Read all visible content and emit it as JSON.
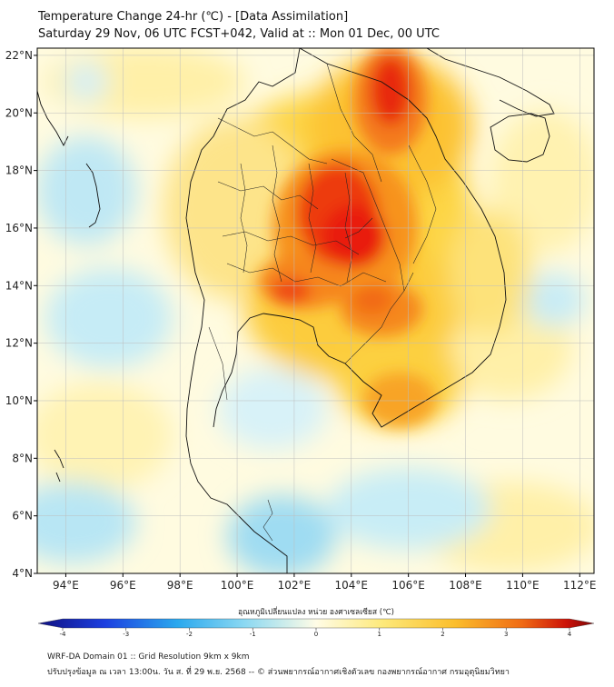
{
  "title": {
    "line1": "Temperature Change 24-hr (℃) - [Data Assimilation]",
    "line2": "Saturday 29 Nov, 06 UTC FCST+042, Valid at :: Mon 01 Dec, 00 UTC"
  },
  "map": {
    "lon_range": [
      93,
      112.5
    ],
    "lat_range": [
      4,
      22.25
    ],
    "lon_ticks": [
      "94°E",
      "96°E",
      "98°E",
      "100°E",
      "102°E",
      "104°E",
      "106°E",
      "108°E",
      "110°E",
      "112°E"
    ],
    "lon_tick_values": [
      94,
      96,
      98,
      100,
      102,
      104,
      106,
      108,
      110,
      112
    ],
    "lat_ticks": [
      "4°N",
      "6°N",
      "8°N",
      "10°N",
      "12°N",
      "14°N",
      "16°N",
      "18°N",
      "20°N",
      "22°N"
    ],
    "lat_tick_values": [
      4,
      6,
      8,
      10,
      12,
      14,
      16,
      18,
      20,
      22
    ]
  },
  "colorbar": {
    "title": "อุณหภูมิเปลี่ยนแปลง หน่วย องศาเซลเซียส (℃)",
    "min": -4,
    "max": 4,
    "tick_labels": [
      "-4",
      "-3",
      "-2",
      "-1",
      "0",
      "1",
      "2",
      "3",
      "4"
    ],
    "tick_values": [
      -4,
      -3,
      -2,
      -1,
      0,
      1,
      2,
      3,
      4
    ]
  },
  "footer": {
    "line1": "WRF-DA Domain 01 :: Grid Resolution 9km x 9km",
    "line2": "ปรับปรุงข้อมูล ณ เวลา 13:00น. วัน ส. ที่ 29 พ.ย. 2568 -- © ส่วนพยากรณ์อากาศเชิงตัวเลข กองพยากรณ์อากาศ กรมอุตุนิยมวิทยา"
  },
  "colors": {
    "warm_strong": "#e8120c",
    "warm": "#f79a1c",
    "warm_light": "#fbd63f",
    "neutral": "#fff6c8",
    "cool_light": "#bde8f4",
    "cool": "#7fd2ee",
    "coast": "#111111"
  }
}
